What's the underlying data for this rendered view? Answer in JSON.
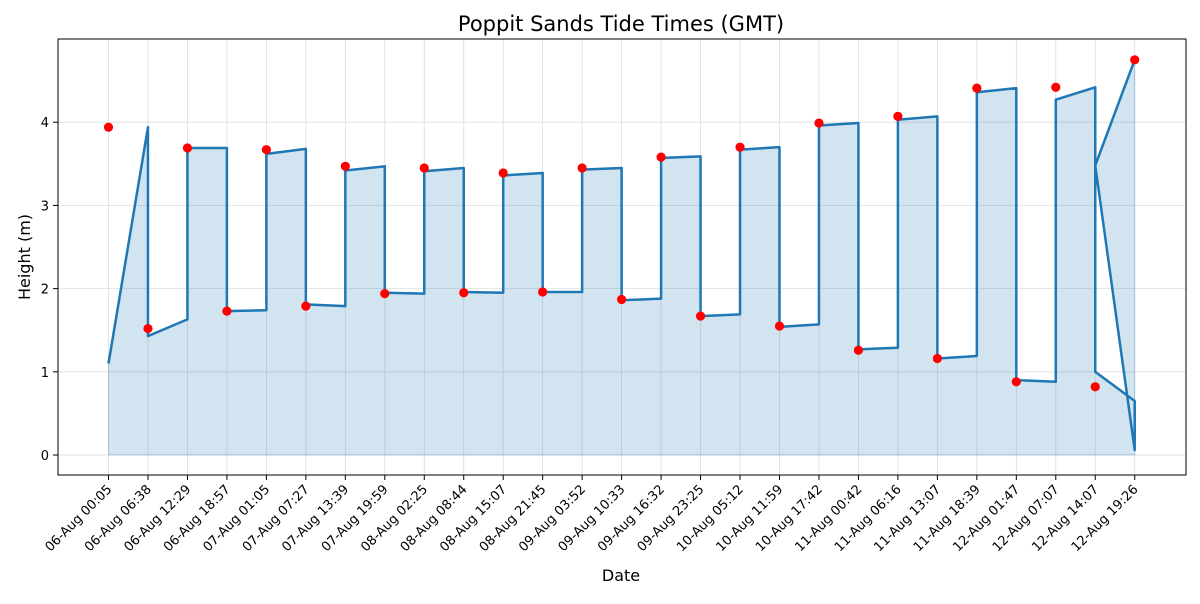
{
  "chart_data": {
    "type": "line",
    "title": "Poppit Sands Tide Times (GMT)",
    "xlabel": "Date",
    "ylabel": "Height (m)",
    "ylim": [
      -0.24,
      5.0
    ],
    "yticks": [
      0,
      1,
      2,
      3,
      4
    ],
    "grid": true,
    "fill_under": true,
    "categories": [
      "06-Aug 00:05",
      "06-Aug 06:38",
      "06-Aug 12:29",
      "06-Aug 18:57",
      "07-Aug 01:05",
      "07-Aug 07:27",
      "07-Aug 13:39",
      "07-Aug 19:59",
      "08-Aug 02:25",
      "08-Aug 08:44",
      "08-Aug 15:07",
      "08-Aug 21:45",
      "09-Aug 03:52",
      "09-Aug 10:33",
      "09-Aug 16:32",
      "09-Aug 23:25",
      "10-Aug 05:12",
      "10-Aug 11:59",
      "10-Aug 17:42",
      "11-Aug 00:42",
      "11-Aug 06:16",
      "11-Aug 13:07",
      "11-Aug 18:39",
      "12-Aug 01:47",
      "12-Aug 07:07",
      "12-Aug 14:07",
      "12-Aug 19:26"
    ],
    "tide_points": [
      3.94,
      1.52,
      3.69,
      1.73,
      3.67,
      1.79,
      3.47,
      1.94,
      3.45,
      1.95,
      3.39,
      1.96,
      3.45,
      1.87,
      3.58,
      1.67,
      3.7,
      1.55,
      3.99,
      1.26,
      4.07,
      1.16,
      4.41,
      0.88,
      4.42,
      0.82,
      4.75
    ],
    "curve_segments": [
      {
        "from": 1.1,
        "to": 3.94
      },
      {
        "from": 1.43,
        "to": 1.63
      },
      {
        "from": 3.69,
        "to": 3.69
      },
      {
        "from": 1.73,
        "to": 1.74
      },
      {
        "from": 3.62,
        "to": 3.68
      },
      {
        "from": 1.81,
        "to": 1.79
      },
      {
        "from": 3.42,
        "to": 3.47
      },
      {
        "from": 1.95,
        "to": 1.94
      },
      {
        "from": 3.41,
        "to": 3.45
      },
      {
        "from": 1.96,
        "to": 1.95
      },
      {
        "from": 3.36,
        "to": 3.39
      },
      {
        "from": 1.96,
        "to": 1.96
      },
      {
        "from": 3.43,
        "to": 3.45
      },
      {
        "from": 1.86,
        "to": 1.88
      },
      {
        "from": 3.57,
        "to": 3.59
      },
      {
        "from": 1.67,
        "to": 1.69
      },
      {
        "from": 3.67,
        "to": 3.7
      },
      {
        "from": 1.54,
        "to": 1.57
      },
      {
        "from": 3.96,
        "to": 3.99
      },
      {
        "from": 1.27,
        "to": 1.29
      },
      {
        "from": 4.03,
        "to": 4.07
      },
      {
        "from": 1.16,
        "to": 1.19
      },
      {
        "from": 4.36,
        "to": 4.41
      },
      {
        "from": 0.9,
        "to": 0.88
      },
      {
        "from": 4.27,
        "to": 4.42
      },
      {
        "from": 1.0,
        "to": 0.65
      },
      {
        "from": 3.48,
        "to": 4.75
      }
    ],
    "curve_end": 0.06,
    "colors": {
      "line": "#1f77b4",
      "fill": "#1f77b4",
      "points": "#ff0000",
      "grid": "#dddddd",
      "axis": "#000000"
    }
  }
}
